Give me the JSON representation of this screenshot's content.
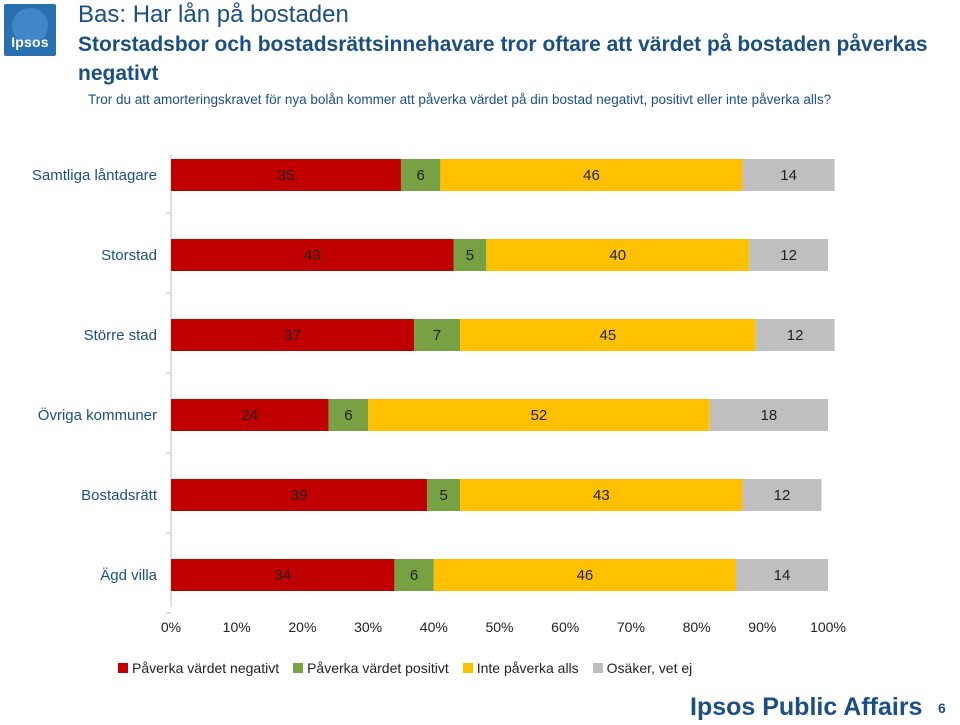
{
  "header": {
    "logo_text": "Ipsos",
    "base_line": "Bas: Har lån på bostaden",
    "headline": "Storstadsbor och bostadsrättsinnehavare tror oftare att värdet på bostaden påverkas negativt",
    "question": "Tror du att amorteringskravet för nya bolån kommer att påverka värdet på din bostad negativt, positivt eller inte påverka alls?"
  },
  "footer": {
    "brand": "Ipsos Public Affairs",
    "page_number": "6"
  },
  "colors": {
    "negative": "#C00000",
    "positive": "#77A142",
    "neutral": "#FFC000",
    "unsure": "#BFBFBF",
    "text_blue": "#1A4F86"
  },
  "chart_data": {
    "type": "bar",
    "orientation": "horizontal",
    "stacked": true,
    "categories": [
      "Samtliga låntagare",
      "Storstad",
      "Större stad",
      "Övriga kommuner",
      "Bostadsrätt",
      "Ägd villa"
    ],
    "series": [
      {
        "name": "Påverka värdet negativt",
        "values": [
          35,
          43,
          37,
          24,
          39,
          34
        ],
        "color": "#C00000"
      },
      {
        "name": "Påverka värdet positivt",
        "values": [
          6,
          5,
          7,
          6,
          5,
          6
        ],
        "color": "#77A142"
      },
      {
        "name": "Inte påverka alls",
        "values": [
          46,
          40,
          45,
          52,
          43,
          46
        ],
        "color": "#FFC000"
      },
      {
        "name": "Osäker, vet ej",
        "values": [
          14,
          12,
          12,
          18,
          12,
          14
        ],
        "color": "#BFBFBF"
      }
    ],
    "xlim": [
      0,
      100
    ],
    "xticks": [
      "0%",
      "10%",
      "20%",
      "30%",
      "40%",
      "50%",
      "60%",
      "70%",
      "80%",
      "90%",
      "100%"
    ],
    "legend_position": "bottom",
    "data_labels": true
  }
}
